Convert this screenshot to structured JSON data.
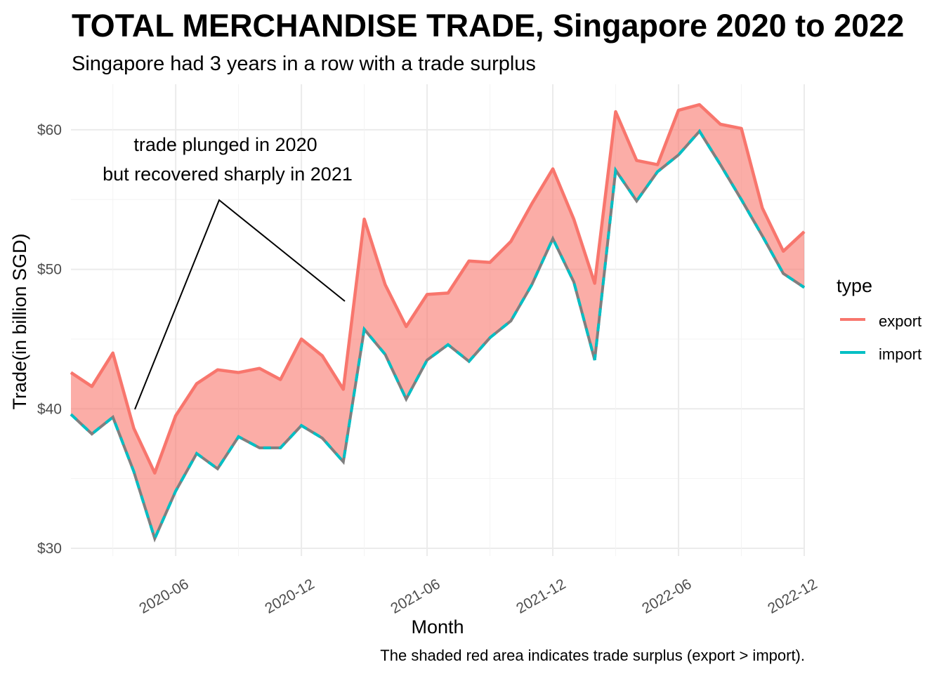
{
  "chart_data": {
    "type": "area",
    "title": "TOTAL MERCHANDISE TRADE, Singapore 2020 to 2022",
    "subtitle": "Singapore had 3 years in a row with a trade surplus",
    "xlabel": "Month",
    "ylabel": "Trade(in billion SGD)",
    "caption": "The shaded red area indicates trade surplus (export > import).",
    "ylim": [
      29.5,
      63.3
    ],
    "yticks": [
      30,
      40,
      50,
      60
    ],
    "ytick_labels": [
      "$30",
      "$40",
      "$50",
      "$60"
    ],
    "xticks": [
      5,
      11,
      17,
      23,
      29,
      35
    ],
    "xtick_labels": [
      "2020-06",
      "2020-12",
      "2021-06",
      "2021-12",
      "2022-06",
      "2022-12"
    ],
    "x": [
      "2020-01",
      "2020-02",
      "2020-03",
      "2020-04",
      "2020-05",
      "2020-06",
      "2020-07",
      "2020-08",
      "2020-09",
      "2020-10",
      "2020-11",
      "2020-12",
      "2021-01",
      "2021-02",
      "2021-03",
      "2021-04",
      "2021-05",
      "2021-06",
      "2021-07",
      "2021-08",
      "2021-09",
      "2021-10",
      "2021-11",
      "2021-12",
      "2022-01",
      "2022-02",
      "2022-03",
      "2022-04",
      "2022-05",
      "2022-06",
      "2022-07",
      "2022-08",
      "2022-09",
      "2022-10",
      "2022-11",
      "2022-12"
    ],
    "series": [
      {
        "name": "export",
        "color": "#F8766D",
        "values": [
          42.6,
          41.6,
          44.0,
          38.6,
          35.4,
          39.5,
          41.8,
          42.8,
          42.6,
          42.9,
          42.1,
          45.0,
          43.8,
          41.4,
          53.6,
          48.9,
          45.9,
          48.2,
          48.3,
          50.6,
          50.5,
          52.0,
          54.7,
          57.2,
          53.6,
          49.0,
          61.3,
          57.8,
          57.5,
          61.4,
          61.8,
          60.4,
          60.1,
          54.4,
          51.3,
          52.7
        ]
      },
      {
        "name": "import",
        "color": "#00BFC4",
        "values": [
          39.6,
          38.2,
          39.4,
          35.5,
          30.7,
          34.1,
          36.8,
          35.7,
          38.0,
          37.2,
          37.2,
          38.8,
          37.9,
          36.2,
          45.7,
          43.9,
          40.7,
          43.5,
          44.6,
          43.4,
          45.1,
          46.3,
          48.9,
          52.2,
          49.1,
          43.5,
          57.1,
          54.9,
          57.0,
          58.2,
          59.9,
          57.5,
          55.0,
          52.4,
          49.7,
          48.7
        ]
      }
    ],
    "fill_color": "#F8766D",
    "legend": {
      "title": "type",
      "entries": [
        "export",
        "import"
      ],
      "position": "right"
    },
    "annotation": {
      "lines": [
        "trade plunged in 2020",
        "but recovered sharply in 2021"
      ]
    },
    "grid": true
  }
}
